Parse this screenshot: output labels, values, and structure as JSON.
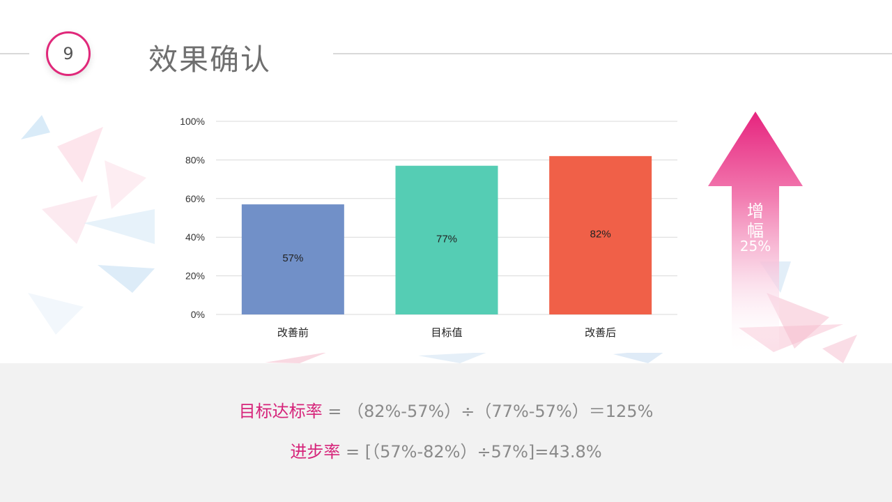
{
  "slide": {
    "number": "9",
    "title": "效果确认"
  },
  "chart_data": {
    "type": "bar",
    "categories": [
      "改善前",
      "目标值",
      "改善后"
    ],
    "values": [
      57,
      77,
      82
    ],
    "value_labels": [
      "57%",
      "77%",
      "82%"
    ],
    "colors": [
      "#7190c8",
      "#55cdb4",
      "#f06048"
    ],
    "ylim": [
      0,
      100
    ],
    "yticks": [
      "0%",
      "20%",
      "40%",
      "60%",
      "80%",
      "100%"
    ],
    "grid": true,
    "title": "",
    "xlabel": "",
    "ylabel": ""
  },
  "arrow": {
    "line1": "增",
    "line2": "幅",
    "line3": "25%",
    "color_top": "#e6247e",
    "color_bottom": "#ffffff"
  },
  "formulas": {
    "f1_label": "目标达标率",
    "f1_expr": " = （82%-57%）÷（77%-57%）＝125%",
    "f2_label": "进步率",
    "f2_expr": " = [（57%-82%）÷57%]=43.8%"
  },
  "colors": {
    "accent": "#e0287a",
    "band": "#f2f2f2"
  }
}
